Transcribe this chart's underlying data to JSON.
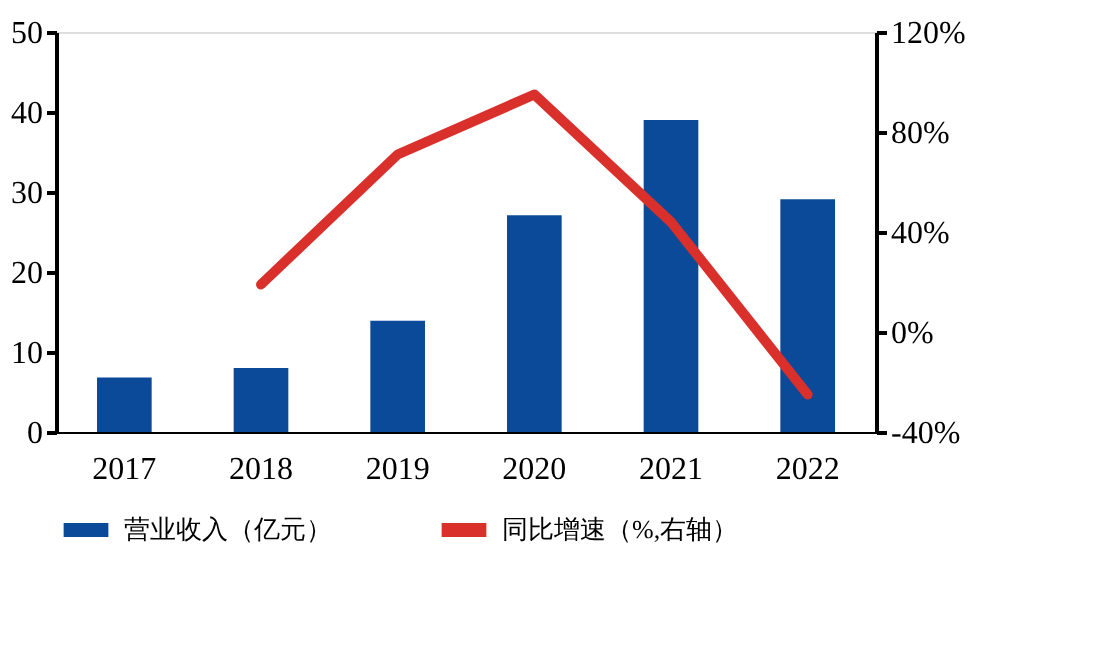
{
  "chart_data": {
    "type": "bar",
    "categories": [
      "2017",
      "2018",
      "2019",
      "2020",
      "2021",
      "2022"
    ],
    "series": [
      {
        "name": "营业收入（亿元）",
        "color": "#0b4a98",
        "values": [
          6.8,
          8.0,
          13.9,
          27.1,
          39.0,
          29.1
        ]
      },
      {
        "name": "同比增速（%,右轴）",
        "color": "#d9302c",
        "type": "line",
        "axis": "y2",
        "values": [
          null,
          19,
          71,
          95,
          44,
          -25
        ]
      }
    ],
    "ylim": [
      0,
      50
    ],
    "yticks": [
      0,
      10,
      20,
      30,
      40,
      50
    ],
    "y2lim": [
      -40,
      120
    ],
    "y2ticks": [
      {
        "value": -40,
        "label": "-40%"
      },
      {
        "value": 0,
        "label": "0%"
      },
      {
        "value": 40,
        "label": "40%"
      },
      {
        "value": 80,
        "label": "80%"
      },
      {
        "value": 120,
        "label": "120%"
      }
    ],
    "grid": false,
    "legend": "bottom",
    "marker": "none",
    "line_style": "solid"
  }
}
